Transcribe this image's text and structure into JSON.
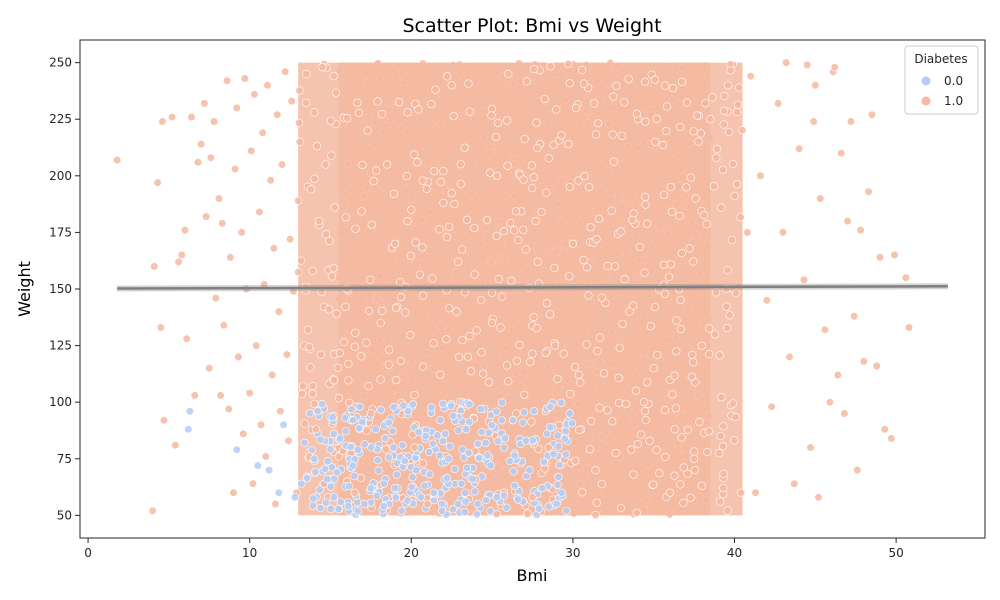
{
  "chart_data": {
    "type": "scatter",
    "title": "Scatter Plot: Bmi vs Weight",
    "xlabel": "Bmi",
    "ylabel": "Weight",
    "xlim": [
      -0.5,
      55.5
    ],
    "ylim": [
      40,
      260
    ],
    "xticks": [
      0,
      10,
      20,
      30,
      40,
      50
    ],
    "yticks": [
      50,
      75,
      100,
      125,
      150,
      175,
      200,
      225,
      250
    ],
    "grid": false,
    "legend": {
      "title": "Diabetes",
      "placement": "top-right",
      "entries": [
        {
          "label": "0.0",
          "color": "#b4cdf5"
        },
        {
          "label": "1.0",
          "color": "#f5b8a0"
        }
      ]
    },
    "series": [
      {
        "name": "0.0",
        "color": "#b4cdf5",
        "points": [
          [
            6.3,
            96
          ],
          [
            6.2,
            88
          ],
          [
            9.2,
            79
          ],
          [
            10.5,
            72
          ],
          [
            11.2,
            70
          ],
          [
            12.1,
            90
          ],
          [
            13.4,
            82
          ],
          [
            14.2,
            96
          ],
          [
            14.8,
            66
          ],
          [
            15.2,
            58
          ],
          [
            15.9,
            93
          ],
          [
            16.4,
            72
          ],
          [
            17.1,
            55
          ],
          [
            17.8,
            88
          ],
          [
            18.3,
            64
          ],
          [
            18.9,
            80
          ],
          [
            19.4,
            52
          ],
          [
            19.8,
            96
          ],
          [
            20.3,
            70
          ],
          [
            20.9,
            85
          ],
          [
            21.4,
            60
          ],
          [
            21.8,
            92
          ],
          [
            22.3,
            75
          ],
          [
            22.9,
            55
          ],
          [
            23.4,
            88
          ],
          [
            23.8,
            66
          ],
          [
            24.3,
            97
          ],
          [
            24.9,
            72
          ],
          [
            25.3,
            58
          ],
          [
            25.8,
            84
          ],
          [
            26.4,
            63
          ],
          [
            26.9,
            91
          ],
          [
            27.3,
            70
          ],
          [
            27.9,
            53
          ],
          [
            28.4,
            86
          ],
          [
            28.8,
            77
          ],
          [
            29.3,
            60
          ],
          [
            29.8,
            95
          ],
          [
            12.8,
            58
          ],
          [
            14.0,
            75
          ],
          [
            16.8,
            98
          ],
          [
            19.1,
            68
          ],
          [
            21.1,
            78
          ],
          [
            22.6,
            94
          ],
          [
            24.6,
            82
          ],
          [
            26.1,
            74
          ],
          [
            27.6,
            96
          ],
          [
            29.1,
            67
          ],
          [
            13.2,
            64
          ],
          [
            15.6,
            84
          ],
          [
            17.5,
            62
          ],
          [
            20.6,
            58
          ],
          [
            23.1,
            64
          ],
          [
            25.6,
            92
          ],
          [
            28.1,
            62
          ],
          [
            18.6,
            91
          ],
          [
            21.9,
            52
          ],
          [
            24.1,
            55
          ],
          [
            26.6,
            57
          ],
          [
            16.1,
            54
          ],
          [
            29.6,
            52
          ],
          [
            11.8,
            60
          ],
          [
            15.4,
            69
          ],
          [
            19.6,
            74
          ],
          [
            22.1,
            86
          ],
          [
            27.1,
            83
          ],
          [
            28.6,
            98
          ],
          [
            20.1,
            99
          ],
          [
            23.6,
            99
          ]
        ]
      },
      {
        "name": "1.0",
        "color": "#f5b8a0",
        "points": [
          [
            1.8,
            207
          ],
          [
            4.0,
            52
          ],
          [
            4.1,
            160
          ],
          [
            4.3,
            197
          ],
          [
            4.5,
            133
          ],
          [
            4.6,
            224
          ],
          [
            4.7,
            92
          ],
          [
            5.2,
            226
          ],
          [
            5.4,
            81
          ],
          [
            5.6,
            162
          ],
          [
            5.8,
            165
          ],
          [
            6.0,
            176
          ],
          [
            6.1,
            128
          ],
          [
            6.4,
            226
          ],
          [
            6.6,
            103
          ],
          [
            6.8,
            206
          ],
          [
            7.0,
            214
          ],
          [
            7.2,
            232
          ],
          [
            7.3,
            182
          ],
          [
            7.5,
            115
          ],
          [
            7.6,
            208
          ],
          [
            7.8,
            224
          ],
          [
            7.9,
            146
          ],
          [
            8.1,
            190
          ],
          [
            8.2,
            103
          ],
          [
            8.3,
            179
          ],
          [
            8.4,
            134
          ],
          [
            8.6,
            242
          ],
          [
            8.7,
            97
          ],
          [
            8.8,
            164
          ],
          [
            9.0,
            60
          ],
          [
            9.1,
            203
          ],
          [
            9.2,
            230
          ],
          [
            9.3,
            120
          ],
          [
            9.5,
            175
          ],
          [
            9.6,
            86
          ],
          [
            9.7,
            243
          ],
          [
            9.8,
            150
          ],
          [
            10.0,
            104
          ],
          [
            10.1,
            211
          ],
          [
            10.2,
            64
          ],
          [
            10.3,
            236
          ],
          [
            10.4,
            125
          ],
          [
            10.6,
            184
          ],
          [
            10.7,
            90
          ],
          [
            10.8,
            219
          ],
          [
            10.9,
            152
          ],
          [
            11.0,
            76
          ],
          [
            11.1,
            240
          ],
          [
            11.3,
            198
          ],
          [
            11.4,
            112
          ],
          [
            11.5,
            168
          ],
          [
            11.6,
            55
          ],
          [
            11.7,
            227
          ],
          [
            11.8,
            140
          ],
          [
            11.9,
            96
          ],
          [
            12.0,
            205
          ],
          [
            12.2,
            246
          ],
          [
            12.3,
            121
          ],
          [
            12.4,
            83
          ],
          [
            12.5,
            172
          ],
          [
            12.6,
            233
          ],
          [
            12.7,
            149
          ],
          [
            12.9,
            60
          ],
          [
            13.0,
            189
          ],
          [
            13.1,
            215
          ],
          [
            13.3,
            107
          ],
          [
            13.5,
            245
          ],
          [
            13.6,
            132
          ],
          [
            13.7,
            76
          ],
          [
            13.8,
            194
          ],
          [
            13.9,
            158
          ],
          [
            14.0,
            228
          ],
          [
            14.1,
            88
          ],
          [
            14.3,
            180
          ],
          [
            14.4,
            121
          ],
          [
            14.5,
            248
          ],
          [
            14.6,
            64
          ],
          [
            14.7,
            205
          ],
          [
            14.9,
            141
          ],
          [
            46.4,
            112
          ],
          [
            46.6,
            210
          ],
          [
            46.8,
            95
          ],
          [
            47.0,
            180
          ],
          [
            47.2,
            224
          ],
          [
            47.4,
            138
          ],
          [
            47.6,
            70
          ],
          [
            47.8,
            176
          ],
          [
            48.0,
            118
          ],
          [
            48.3,
            193
          ],
          [
            48.5,
            227
          ],
          [
            48.8,
            116
          ],
          [
            49.0,
            164
          ],
          [
            49.3,
            88
          ],
          [
            49.7,
            84
          ],
          [
            49.9,
            165
          ],
          [
            50.6,
            155
          ],
          [
            50.8,
            133
          ],
          [
            41.0,
            244
          ],
          [
            41.3,
            60
          ],
          [
            41.6,
            200
          ],
          [
            42.0,
            145
          ],
          [
            42.3,
            98
          ],
          [
            42.7,
            232
          ],
          [
            43.0,
            175
          ],
          [
            43.4,
            120
          ],
          [
            43.7,
            64
          ],
          [
            44.0,
            212
          ],
          [
            44.3,
            154
          ],
          [
            44.7,
            80
          ],
          [
            45.0,
            240
          ],
          [
            45.3,
            190
          ],
          [
            45.6,
            132
          ],
          [
            45.9,
            100
          ],
          [
            46.1,
            246
          ],
          [
            45.2,
            58
          ],
          [
            44.9,
            224
          ],
          [
            43.2,
            250
          ],
          [
            44.5,
            249
          ],
          [
            46.2,
            248
          ],
          [
            15.2,
            244
          ],
          [
            16.5,
            60
          ],
          [
            17.3,
            220
          ],
          [
            18.1,
            110
          ],
          [
            19.0,
            170
          ],
          [
            20.2,
            80
          ],
          [
            21.5,
            238
          ],
          [
            22.8,
            140
          ],
          [
            24.0,
            66
          ],
          [
            25.3,
            200
          ],
          [
            26.5,
            95
          ],
          [
            27.7,
            180
          ],
          [
            28.9,
            125
          ],
          [
            30.2,
            230
          ],
          [
            31.4,
            70
          ],
          [
            32.6,
            160
          ],
          [
            33.9,
            105
          ],
          [
            35.1,
            215
          ],
          [
            36.3,
            88
          ],
          [
            37.6,
            190
          ],
          [
            38.8,
            130
          ],
          [
            39.6,
            240
          ],
          [
            40.4,
            60
          ],
          [
            40.8,
            175
          ],
          [
            16.0,
            150
          ],
          [
            18.5,
            205
          ],
          [
            21.0,
            55
          ],
          [
            23.5,
            120
          ],
          [
            26.0,
            245
          ],
          [
            28.5,
            80
          ],
          [
            31.0,
            195
          ],
          [
            33.5,
            140
          ],
          [
            36.0,
            60
          ],
          [
            38.5,
            225
          ],
          [
            17.5,
            95
          ],
          [
            20.0,
            185
          ],
          [
            22.5,
            240
          ],
          [
            25.0,
            135
          ],
          [
            27.5,
            58
          ],
          [
            30.0,
            170
          ],
          [
            32.5,
            235
          ],
          [
            35.0,
            115
          ],
          [
            37.5,
            75
          ],
          [
            39.5,
            150
          ]
        ]
      }
    ],
    "density_regions": [
      {
        "series": "1.0",
        "x": [
          15.5,
          38.5
        ],
        "y": [
          50,
          250
        ]
      },
      {
        "series": "1.0",
        "x": [
          13,
          40.5
        ],
        "y": [
          50,
          250
        ]
      },
      {
        "series": "0.0",
        "x": [
          13.5,
          30
        ],
        "y": [
          50,
          100
        ]
      }
    ],
    "trend_line": {
      "x": [
        1.8,
        53.2
      ],
      "y": [
        150.2,
        151.2
      ],
      "color": "#808080"
    }
  }
}
